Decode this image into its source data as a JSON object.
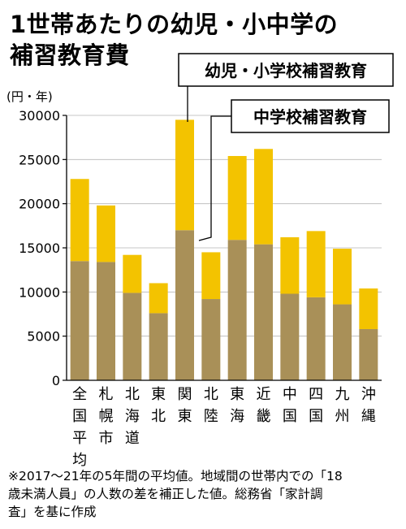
{
  "title_lines": [
    "1世帯あたりの幼児・小中学の",
    "補習教育費"
  ],
  "unit_label": "(円・年)",
  "legend": {
    "total": "幼児・小学校補習教育",
    "junior_high": "中学校補習教育"
  },
  "colors": {
    "junior_high": "#a99058",
    "elementary": "#f3c300",
    "axis": "#000000",
    "grid": "#b5b5b5"
  },
  "note_lines": [
    "※2017〜21年の5年間の平均値。地域間の世帯内での「18",
    "歳未満人員」の人数の差を補正した値。総務省「家計調",
    "査」を基に作成"
  ],
  "chart_data": {
    "type": "bar",
    "stacked": true,
    "categories": [
      "全国平均",
      "札幌市",
      "北海道",
      "東北",
      "関東",
      "北陸",
      "東海",
      "近畿",
      "中国",
      "四国",
      "九州",
      "沖縄"
    ],
    "series": [
      {
        "name": "中学校補習教育",
        "values": [
          13500,
          13400,
          9900,
          7600,
          17000,
          9200,
          15900,
          15400,
          9800,
          9400,
          8600,
          5800
        ]
      },
      {
        "name": "幼児・小学校補習教育",
        "values": [
          9300,
          6400,
          4300,
          3400,
          12500,
          5300,
          9500,
          10800,
          6400,
          7500,
          6300,
          4600
        ]
      }
    ],
    "ylim": [
      0,
      30000
    ],
    "yticks": [
      0,
      5000,
      10000,
      15000,
      20000,
      25000,
      30000
    ],
    "grid": true,
    "legend_position": "top-right callouts"
  }
}
